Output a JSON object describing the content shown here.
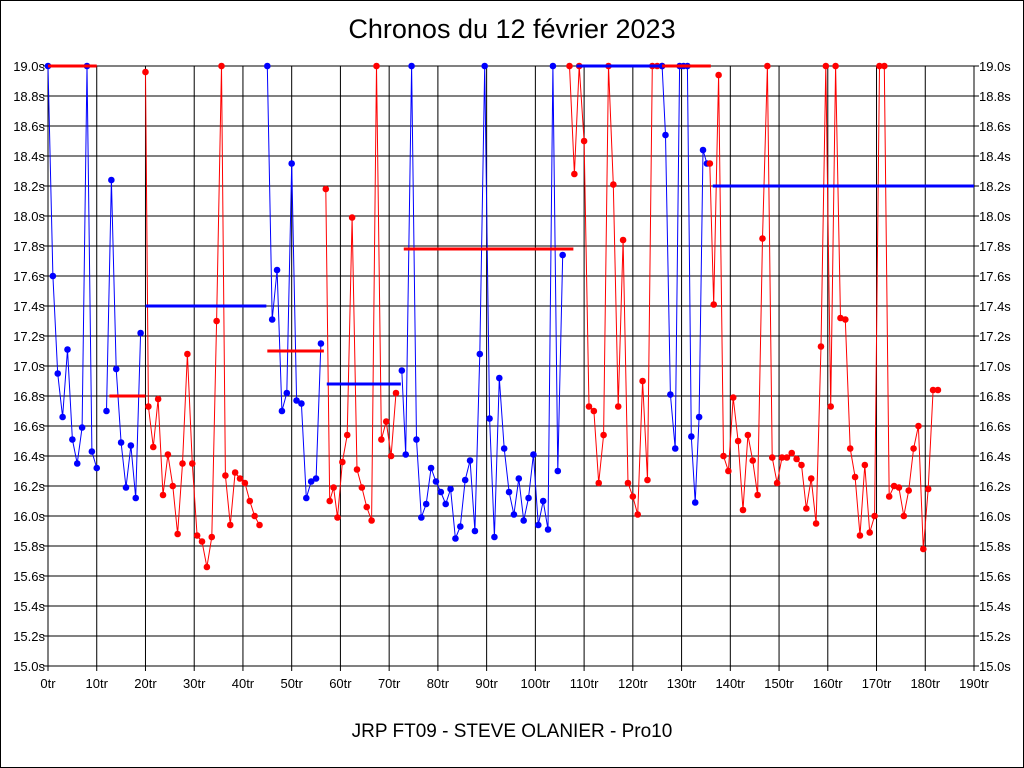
{
  "chart_data": {
    "type": "line",
    "title": "Chronos du 12 février 2023",
    "footer": "JRP FT09 - STEVE OLANIER - Pro10",
    "xlabel": "",
    "ylabel": "",
    "xlim": [
      0,
      190
    ],
    "ylim": [
      15.0,
      19.0
    ],
    "grid": true,
    "x_ticks": [
      "0tr",
      "10tr",
      "20tr",
      "30tr",
      "40tr",
      "50tr",
      "60tr",
      "70tr",
      "80tr",
      "90tr",
      "100tr",
      "110tr",
      "120tr",
      "130tr",
      "140tr",
      "150tr",
      "160tr",
      "170tr",
      "180tr",
      "190tr"
    ],
    "y_ticks": [
      "15.0s",
      "15.2s",
      "15.4s",
      "15.6s",
      "15.8s",
      "16.0s",
      "16.2s",
      "16.4s",
      "16.6s",
      "16.8s",
      "17.0s",
      "17.2s",
      "17.4s",
      "17.6s",
      "17.8s",
      "18.0s",
      "18.2s",
      "18.4s",
      "18.6s",
      "18.8s",
      "19.0s"
    ],
    "colors": {
      "blue": "#0000ff",
      "red": "#ff0000"
    },
    "segments": [
      {
        "color": "blue",
        "x": [
          0,
          1,
          2,
          3,
          4,
          5,
          6,
          7,
          8,
          9,
          10
        ],
        "y": [
          19.0,
          17.6,
          16.95,
          16.66,
          17.11,
          16.51,
          16.35,
          16.59,
          19.0,
          16.43,
          16.32
        ]
      },
      {
        "color": "blue",
        "x": [
          12,
          13,
          14,
          15,
          16,
          17,
          18,
          19
        ],
        "y": [
          16.7,
          18.24,
          16.98,
          16.49,
          16.19,
          16.47,
          16.12,
          17.22
        ]
      },
      {
        "color": "red",
        "x": [
          20,
          20.6,
          21.6,
          22.6,
          23.6,
          24.6,
          25.6,
          26.6,
          27.6,
          28.6,
          29.6,
          30.6,
          31.6,
          32.6,
          33.6,
          34.6,
          35.6,
          36.4,
          37.4,
          38.4,
          39.4,
          40.4,
          41.4,
          42.4,
          43.4
        ],
        "y": [
          18.96,
          16.73,
          16.46,
          16.78,
          16.14,
          16.41,
          16.2,
          15.88,
          16.35,
          17.08,
          16.35,
          15.87,
          15.83,
          15.66,
          15.86,
          17.3,
          19.0,
          16.27,
          15.94,
          16.29,
          16.25,
          16.22,
          16.1,
          16.0,
          15.94
        ]
      },
      {
        "color": "blue",
        "x": [
          45,
          46,
          47,
          48,
          49,
          50,
          51,
          52,
          53,
          54,
          55,
          56
        ],
        "y": [
          19.0,
          17.31,
          17.64,
          16.7,
          16.82,
          18.35,
          16.77,
          16.75,
          16.12,
          16.23,
          16.25,
          17.15
        ]
      },
      {
        "color": "red",
        "x": [
          57,
          57.8,
          58.6,
          59.4,
          60.4,
          61.4,
          62.4,
          63.4,
          64.4,
          65.4,
          66.4,
          67.4,
          68.4,
          69.4,
          70.4,
          71.4
        ],
        "y": [
          18.18,
          16.1,
          16.19,
          15.99,
          16.36,
          16.54,
          17.99,
          16.31,
          16.19,
          16.06,
          15.97,
          19.0,
          16.51,
          16.63,
          16.4,
          16.82
        ]
      },
      {
        "color": "blue",
        "x": [
          72.6,
          73.4,
          74.6,
          75.6,
          76.6,
          77.6,
          78.6,
          79.6,
          80.6,
          81.6,
          82.6,
          83.6,
          84.6,
          85.6,
          86.6,
          87.6,
          88.6,
          89.6,
          90.6,
          91.6,
          92.6,
          93.6,
          94.6,
          95.6,
          96.6,
          97.6,
          98.6,
          99.6,
          100.6,
          101.6,
          102.6,
          103.6,
          104.6,
          105.6
        ],
        "y": [
          16.97,
          16.41,
          19.0,
          16.51,
          15.99,
          16.08,
          16.32,
          16.23,
          16.16,
          16.08,
          16.18,
          15.85,
          15.93,
          16.24,
          16.37,
          15.9,
          17.08,
          19.0,
          16.65,
          15.86,
          16.92,
          16.45,
          16.16,
          16.01,
          16.25,
          15.97,
          16.12,
          16.41,
          15.94,
          16.1,
          15.91,
          19.0,
          16.3,
          17.74
        ]
      },
      {
        "color": "red",
        "x": [
          107,
          108,
          109,
          110,
          111,
          112,
          113,
          114,
          115,
          116,
          117,
          118,
          119,
          120,
          121,
          122,
          123,
          124,
          125,
          126
        ],
        "y": [
          19.0,
          18.28,
          19.0,
          18.5,
          16.73,
          16.7,
          16.22,
          16.54,
          19.0,
          18.21,
          16.73,
          17.84,
          16.22,
          16.13,
          16.01,
          16.9,
          16.24,
          19.0,
          19.0,
          19.0
        ]
      },
      {
        "color": "blue",
        "x": [
          126,
          126.7,
          127.7,
          128.7,
          129.6,
          130.4,
          131.2,
          132,
          132.8,
          133.6,
          134.4,
          135.2
        ],
        "y": [
          19.0,
          18.54,
          16.81,
          16.45,
          19.0,
          19.0,
          19.0,
          16.53,
          16.09,
          16.66,
          18.44,
          18.35
        ]
      },
      {
        "color": "red",
        "x": [
          135.8,
          136.6,
          137.6,
          138.6,
          139.6,
          140.6,
          141.6,
          142.6,
          143.6,
          144.6,
          145.6,
          146.6,
          147.6,
          148.6,
          149.6,
          150.6,
          151.6,
          152.6,
          153.6,
          154.6,
          155.6,
          156.6,
          157.6,
          158.6,
          159.6,
          160.6,
          161.6,
          162.6,
          163.6,
          164.6,
          165.6,
          166.6,
          167.6,
          168.6,
          169.6,
          170.6,
          171.6,
          172.6,
          173.6,
          174.6,
          175.6,
          176.6,
          177.6,
          178.6,
          179.6,
          180.6,
          181.6,
          182.6
        ],
        "y": [
          18.35,
          17.41,
          18.94,
          16.4,
          16.3,
          16.79,
          16.5,
          16.04,
          16.54,
          16.37,
          16.14,
          17.85,
          19.0,
          16.39,
          16.22,
          16.39,
          16.39,
          16.42,
          16.38,
          16.34,
          16.05,
          16.25,
          15.95,
          17.13,
          19.0,
          16.73,
          19.0,
          17.32,
          17.31,
          16.45,
          16.26,
          15.87,
          16.34,
          15.89,
          16.0,
          19.0,
          19.0,
          16.13,
          16.2,
          16.19,
          16.0,
          16.17,
          16.45,
          16.6,
          15.78,
          16.18,
          16.84,
          16.84
        ]
      }
    ],
    "reference_lines": [
      {
        "color": "red",
        "x1": 0,
        "x2": 10,
        "y": 19.0
      },
      {
        "color": "red",
        "x1": 12.6,
        "x2": 20,
        "y": 16.8
      },
      {
        "color": "blue",
        "x1": 20,
        "x2": 44.8,
        "y": 17.4
      },
      {
        "color": "red",
        "x1": 45,
        "x2": 56.6,
        "y": 17.1
      },
      {
        "color": "blue",
        "x1": 57.2,
        "x2": 72.4,
        "y": 16.88
      },
      {
        "color": "red",
        "x1": 73,
        "x2": 107.8,
        "y": 17.78
      },
      {
        "color": "blue",
        "x1": 108.4,
        "x2": 126,
        "y": 19.0
      },
      {
        "color": "red",
        "x1": 126,
        "x2": 136,
        "y": 19.0
      },
      {
        "color": "blue",
        "x1": 136.4,
        "x2": 190,
        "y": 18.2
      }
    ]
  }
}
